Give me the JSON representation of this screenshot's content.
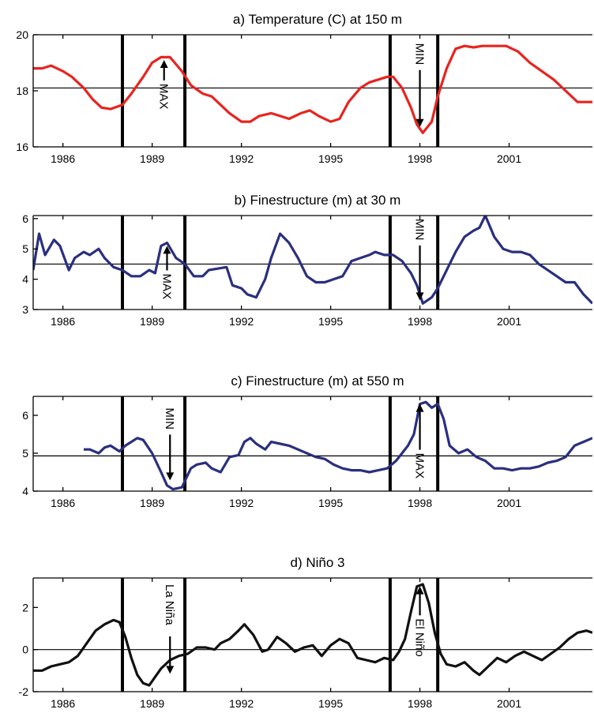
{
  "chart_data": [
    {
      "type": "line",
      "title": "a) Temperature (C) at 150 m",
      "color": "#e8241f",
      "xlim": [
        1985,
        2003.8
      ],
      "ylim": [
        16,
        20
      ],
      "yticks": [
        16,
        18,
        20
      ],
      "xticks": [
        1986,
        1989,
        1992,
        1995,
        1998,
        2001
      ],
      "reference_line": 18.1,
      "event_lines": [
        1988,
        1990.1,
        1997,
        1998.6
      ],
      "annotations": [
        {
          "text": "MAX",
          "x": 1989.4,
          "y_top": 19.1,
          "y_bottom": 17.3,
          "arrow": "up"
        },
        {
          "text": "MIN",
          "x": 1998,
          "y_top": 19.7,
          "y_bottom": 16.6,
          "arrow": "down"
        }
      ],
      "x": [
        1985.0,
        1985.3,
        1985.6,
        1986.0,
        1986.3,
        1986.7,
        1987.0,
        1987.3,
        1987.6,
        1988.0,
        1988.3,
        1988.7,
        1989.0,
        1989.3,
        1989.6,
        1990.0,
        1990.3,
        1990.7,
        1991.0,
        1991.3,
        1991.6,
        1992.0,
        1992.3,
        1992.6,
        1993.0,
        1993.3,
        1993.6,
        1994.0,
        1994.3,
        1994.6,
        1995.0,
        1995.3,
        1995.6,
        1996.0,
        1996.3,
        1996.6,
        1996.9,
        1997.1,
        1997.4,
        1997.7,
        1997.9,
        1998.1,
        1998.4,
        1998.6,
        1998.9,
        1999.2,
        1999.5,
        1999.8,
        2000.1,
        2000.5,
        2000.9,
        2001.3,
        2001.7,
        2002.1,
        2002.5,
        2002.9,
        2003.3,
        2003.8
      ],
      "y": [
        18.8,
        18.8,
        18.9,
        18.7,
        18.5,
        18.1,
        17.7,
        17.4,
        17.35,
        17.5,
        17.9,
        18.5,
        19.0,
        19.2,
        19.2,
        18.7,
        18.2,
        17.9,
        17.8,
        17.5,
        17.2,
        16.9,
        16.9,
        17.1,
        17.2,
        17.1,
        17.0,
        17.2,
        17.3,
        17.1,
        16.9,
        17.0,
        17.6,
        18.1,
        18.3,
        18.4,
        18.5,
        18.5,
        18.1,
        17.4,
        16.8,
        16.5,
        16.9,
        17.8,
        18.8,
        19.5,
        19.6,
        19.55,
        19.6,
        19.6,
        19.6,
        19.4,
        19.0,
        18.7,
        18.4,
        18.0,
        17.6,
        17.6
      ]
    },
    {
      "type": "line",
      "title": "b) Finestructure (m) at 30 m",
      "color": "#2a2f7f",
      "xlim": [
        1985,
        2003.8
      ],
      "ylim": [
        3,
        6.1
      ],
      "yticks": [
        3,
        4,
        5,
        6
      ],
      "xticks": [
        1986,
        1989,
        1992,
        1995,
        1998,
        2001
      ],
      "reference_line": 4.5,
      "event_lines": [
        1988,
        1990.1,
        1997,
        1998.6
      ],
      "annotations": [
        {
          "text": "MAX",
          "x": 1989.5,
          "y_top": 5.1,
          "y_bottom": 3.3,
          "arrow": "up"
        },
        {
          "text": "MIN",
          "x": 1998,
          "y_top": 6.0,
          "y_bottom": 3.2,
          "arrow": "down"
        }
      ],
      "x": [
        1985.0,
        1985.2,
        1985.4,
        1985.7,
        1985.9,
        1986.2,
        1986.4,
        1986.7,
        1986.9,
        1987.2,
        1987.4,
        1987.7,
        1988.0,
        1988.3,
        1988.6,
        1988.9,
        1989.1,
        1989.3,
        1989.5,
        1989.8,
        1990.1,
        1990.4,
        1990.7,
        1990.9,
        1991.2,
        1991.5,
        1991.7,
        1992.0,
        1992.2,
        1992.5,
        1992.8,
        1993.0,
        1993.3,
        1993.6,
        1993.9,
        1994.2,
        1994.5,
        1994.8,
        1995.1,
        1995.4,
        1995.7,
        1996.0,
        1996.3,
        1996.5,
        1996.8,
        1997.1,
        1997.4,
        1997.7,
        1997.9,
        1998.1,
        1998.4,
        1998.6,
        1998.9,
        1999.2,
        1999.5,
        1999.8,
        2000.0,
        2000.2,
        2000.5,
        2000.8,
        2001.1,
        2001.4,
        2001.7,
        2002.0,
        2002.3,
        2002.6,
        2002.9,
        2003.2,
        2003.5,
        2003.8
      ],
      "y": [
        4.3,
        5.5,
        4.8,
        5.3,
        5.1,
        4.3,
        4.7,
        4.9,
        4.8,
        5.0,
        4.7,
        4.4,
        4.3,
        4.1,
        4.1,
        4.3,
        4.2,
        5.1,
        5.2,
        4.7,
        4.5,
        4.1,
        4.1,
        4.3,
        4.35,
        4.4,
        3.8,
        3.7,
        3.5,
        3.4,
        4.0,
        4.7,
        5.5,
        5.2,
        4.7,
        4.1,
        3.9,
        3.9,
        4.0,
        4.1,
        4.6,
        4.7,
        4.8,
        4.9,
        4.8,
        4.8,
        4.6,
        4.2,
        3.8,
        3.2,
        3.4,
        3.7,
        4.3,
        4.9,
        5.4,
        5.6,
        5.7,
        6.1,
        5.4,
        5.0,
        4.9,
        4.9,
        4.8,
        4.5,
        4.3,
        4.1,
        3.9,
        3.9,
        3.5,
        3.2
      ]
    },
    {
      "type": "line",
      "title": "c) Finestructure (m) at 550 m",
      "color": "#2a2f7f",
      "xlim": [
        1985,
        2003.8
      ],
      "ylim": [
        4,
        6.5
      ],
      "yticks": [
        4,
        5,
        6
      ],
      "xticks": [
        1986,
        1989,
        1992,
        1995,
        1998,
        2001
      ],
      "reference_line": 4.93,
      "event_lines": [
        1988,
        1990.1,
        1997,
        1998.6
      ],
      "annotations": [
        {
          "text": "MIN",
          "x": 1989.6,
          "y_top": 6.2,
          "y_bottom": 4.2,
          "arrow": "down"
        },
        {
          "text": "MAX",
          "x": 1998,
          "y_top": 6.3,
          "y_bottom": 4.3,
          "arrow": "up"
        }
      ],
      "x": [
        1986.7,
        1986.9,
        1987.2,
        1987.4,
        1987.6,
        1987.9,
        1988.1,
        1988.3,
        1988.5,
        1988.7,
        1989.0,
        1989.3,
        1989.5,
        1989.7,
        1990.0,
        1990.3,
        1990.5,
        1990.8,
        1991.0,
        1991.3,
        1991.6,
        1991.9,
        1992.1,
        1992.3,
        1992.5,
        1992.8,
        1993.0,
        1993.3,
        1993.6,
        1993.9,
        1994.2,
        1994.5,
        1994.8,
        1995.1,
        1995.4,
        1995.7,
        1996.0,
        1996.3,
        1996.6,
        1996.9,
        1997.2,
        1997.4,
        1997.6,
        1997.8,
        1998.0,
        1998.2,
        1998.4,
        1998.6,
        1998.8,
        1999.0,
        1999.3,
        1999.6,
        1999.9,
        2000.2,
        2000.5,
        2000.8,
        2001.1,
        2001.4,
        2001.7,
        2002.0,
        2002.3,
        2002.6,
        2002.9,
        2003.2,
        2003.5,
        2003.8
      ],
      "y": [
        5.1,
        5.1,
        5.0,
        5.15,
        5.2,
        5.05,
        5.2,
        5.3,
        5.4,
        5.35,
        5.0,
        4.5,
        4.15,
        4.05,
        4.1,
        4.6,
        4.7,
        4.75,
        4.6,
        4.5,
        4.9,
        4.95,
        5.3,
        5.4,
        5.25,
        5.1,
        5.3,
        5.25,
        5.2,
        5.1,
        5.0,
        4.9,
        4.85,
        4.7,
        4.6,
        4.55,
        4.55,
        4.5,
        4.55,
        4.6,
        4.8,
        5.0,
        5.2,
        5.5,
        6.3,
        6.35,
        6.2,
        6.3,
        5.9,
        5.2,
        5.0,
        5.1,
        4.9,
        4.8,
        4.6,
        4.6,
        4.55,
        4.6,
        4.6,
        4.65,
        4.75,
        4.8,
        4.9,
        5.2,
        5.3,
        5.4
      ]
    },
    {
      "type": "line",
      "title": "d) Niño 3",
      "color": "#111111",
      "xlim": [
        1985,
        2003.8
      ],
      "ylim": [
        -2,
        3.4
      ],
      "yticks": [
        -2,
        0,
        2
      ],
      "xticks": [
        1986,
        1989,
        1992,
        1995,
        1998,
        2001
      ],
      "reference_line": 0,
      "event_lines": [
        1988,
        1990.1,
        1997,
        1998.6
      ],
      "annotations": [
        {
          "text": "La Niña",
          "x": 1989.6,
          "y_top": 3.1,
          "y_bottom": -1.3,
          "arrow": "down"
        },
        {
          "text": "El Niño",
          "x": 1998,
          "y_top": 3.0,
          "y_bottom": -1.0,
          "arrow": "up"
        }
      ],
      "x": [
        1985.0,
        1985.3,
        1985.6,
        1985.9,
        1986.2,
        1986.5,
        1986.8,
        1987.1,
        1987.4,
        1987.7,
        1987.9,
        1988.1,
        1988.3,
        1988.5,
        1988.7,
        1988.9,
        1989.1,
        1989.3,
        1989.6,
        1989.9,
        1990.2,
        1990.5,
        1990.8,
        1991.1,
        1991.3,
        1991.6,
        1991.9,
        1992.1,
        1992.4,
        1992.7,
        1992.9,
        1993.2,
        1993.5,
        1993.8,
        1994.1,
        1994.4,
        1994.7,
        1995.0,
        1995.3,
        1995.6,
        1995.9,
        1996.2,
        1996.5,
        1996.8,
        1997.1,
        1997.3,
        1997.5,
        1997.7,
        1997.9,
        1998.1,
        1998.3,
        1998.5,
        1998.7,
        1998.9,
        1999.2,
        1999.5,
        1999.8,
        2000.0,
        2000.3,
        2000.6,
        2000.9,
        2001.2,
        2001.5,
        2001.8,
        2002.1,
        2002.4,
        2002.7,
        2003.0,
        2003.3,
        2003.6,
        2003.8
      ],
      "y": [
        -1.0,
        -1.0,
        -0.8,
        -0.7,
        -0.6,
        -0.3,
        0.3,
        0.9,
        1.2,
        1.4,
        1.3,
        0.6,
        -0.4,
        -1.2,
        -1.6,
        -1.7,
        -1.3,
        -0.9,
        -0.5,
        -0.3,
        -0.2,
        0.1,
        0.1,
        0.0,
        0.3,
        0.5,
        0.9,
        1.2,
        0.7,
        -0.1,
        0.0,
        0.6,
        0.3,
        -0.1,
        0.1,
        0.2,
        -0.3,
        0.2,
        0.5,
        0.3,
        -0.4,
        -0.5,
        -0.6,
        -0.4,
        -0.5,
        -0.1,
        0.5,
        1.8,
        3.0,
        3.1,
        2.2,
        0.8,
        -0.2,
        -0.7,
        -0.8,
        -0.6,
        -1.0,
        -1.2,
        -0.8,
        -0.4,
        -0.6,
        -0.3,
        -0.1,
        -0.3,
        -0.5,
        -0.2,
        0.1,
        0.5,
        0.8,
        0.9,
        0.8
      ]
    }
  ]
}
